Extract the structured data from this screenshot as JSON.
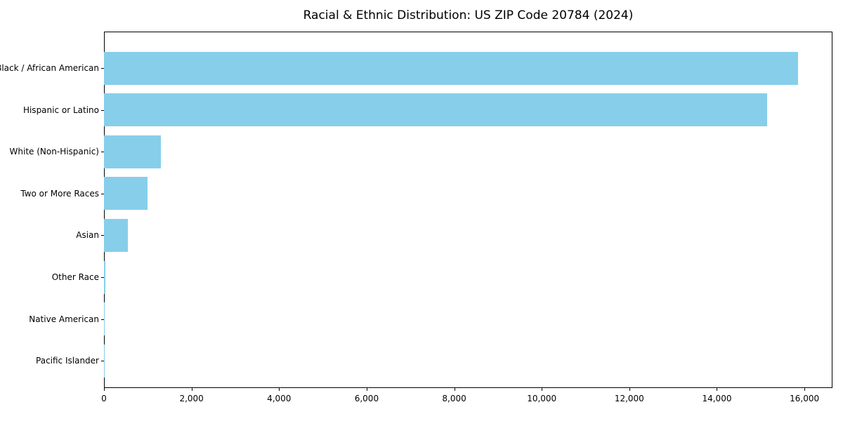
{
  "chart_data": {
    "type": "bar",
    "orientation": "horizontal",
    "title": "Racial & Ethnic Distribution: US ZIP Code 20784 (2024)",
    "categories": [
      "Black / African American",
      "Hispanic or Latino",
      "White (Non-Hispanic)",
      "Two or More Races",
      "Asian",
      "Other Race",
      "Native American",
      "Pacific Islander"
    ],
    "values": [
      15856,
      15150,
      1300,
      1000,
      540,
      30,
      15,
      10
    ],
    "xlabel": "",
    "ylabel": "",
    "xlim": [
      0,
      16640
    ],
    "x_ticks": [
      0,
      2000,
      4000,
      6000,
      8000,
      10000,
      12000,
      14000,
      16000
    ],
    "x_tick_labels": [
      "0",
      "2,000",
      "4,000",
      "6,000",
      "8,000",
      "10,000",
      "12,000",
      "14,000",
      "16,000"
    ],
    "bar_color": "#87CEEB",
    "frame_color": "#000000",
    "grid": false,
    "legend": null
  }
}
